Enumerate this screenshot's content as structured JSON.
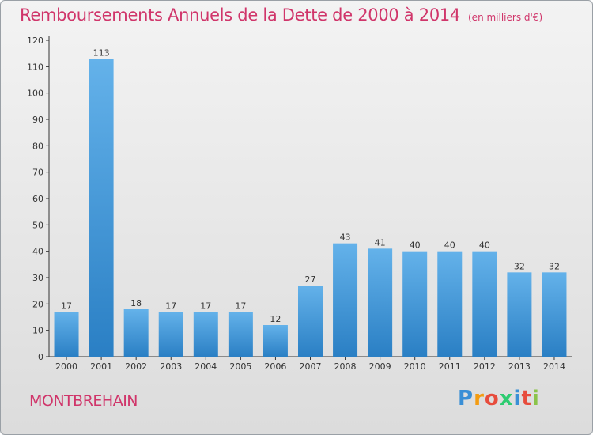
{
  "header": {
    "title": "Remboursements Annuels de la Dette de 2000 à 2014",
    "unit": "(en milliers d'€)"
  },
  "footer": {
    "commune": "MONTBREHAIN"
  },
  "logo": {
    "text": "Proxiti",
    "letter_colors": [
      "#3a8fd6",
      "#f39c12",
      "#e74c3c",
      "#2ecc71",
      "#3a8fd6",
      "#e74c3c",
      "#8bc34a"
    ]
  },
  "colors": {
    "bar_light": "#64b2ea",
    "bar_dark": "#2a7fc4",
    "title": "#d0356a",
    "axis": "#333333",
    "grid": "#c8c8c8"
  },
  "chart_data": {
    "type": "bar",
    "title": "Remboursements Annuels de la Dette de 2000 à 2014",
    "xlabel": "",
    "ylabel": "",
    "categories": [
      "2000",
      "2001",
      "2002",
      "2003",
      "2004",
      "2005",
      "2006",
      "2007",
      "2008",
      "2009",
      "2010",
      "2011",
      "2012",
      "2013",
      "2014"
    ],
    "values": [
      17,
      113,
      18,
      17,
      17,
      17,
      12,
      27,
      43,
      41,
      40,
      40,
      40,
      32,
      32
    ],
    "ylim": [
      0,
      120
    ],
    "yticks": [
      0,
      10,
      20,
      30,
      40,
      50,
      60,
      70,
      80,
      90,
      100,
      110,
      120
    ],
    "grid": false,
    "data_labels": true
  }
}
